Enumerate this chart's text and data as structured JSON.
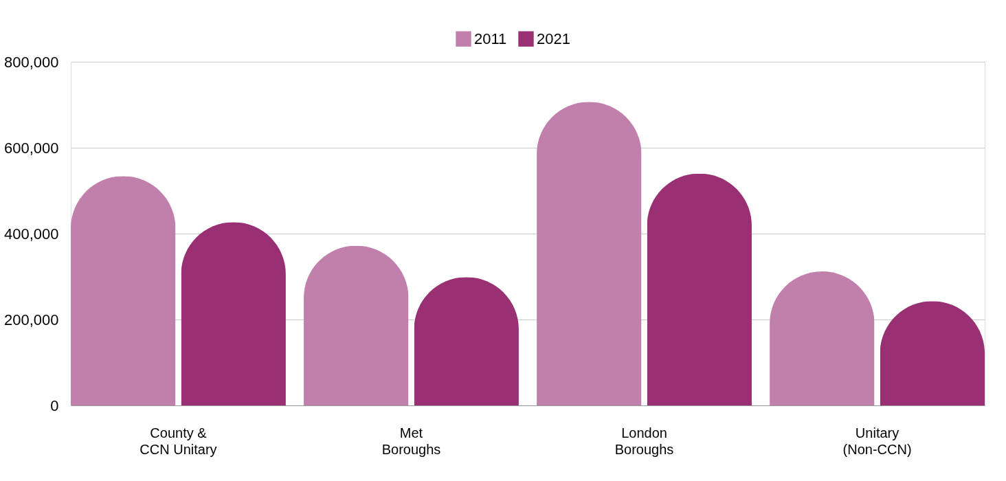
{
  "chart_data": {
    "type": "bar",
    "categories": [
      "County & CCN Unitary",
      "Met Boroughs",
      "London Boroughs",
      "Unitary (Non-CCN)"
    ],
    "series": [
      {
        "name": "2011",
        "color": "#c17fab",
        "values": [
          534000,
          372000,
          707000,
          312000
        ]
      },
      {
        "name": "2021",
        "color": "#993073",
        "values": [
          427000,
          299000,
          540000,
          243000
        ]
      }
    ],
    "ylim": [
      0,
      800000
    ],
    "yticks": [
      0,
      {
        "value": 200000,
        "label": "200,000"
      },
      {
        "value": 400000,
        "label": "400,000"
      },
      {
        "value": 600000,
        "label": "600,000"
      },
      {
        "value": 800000,
        "label": "800,000"
      }
    ],
    "grid": "y",
    "legend": "top"
  }
}
